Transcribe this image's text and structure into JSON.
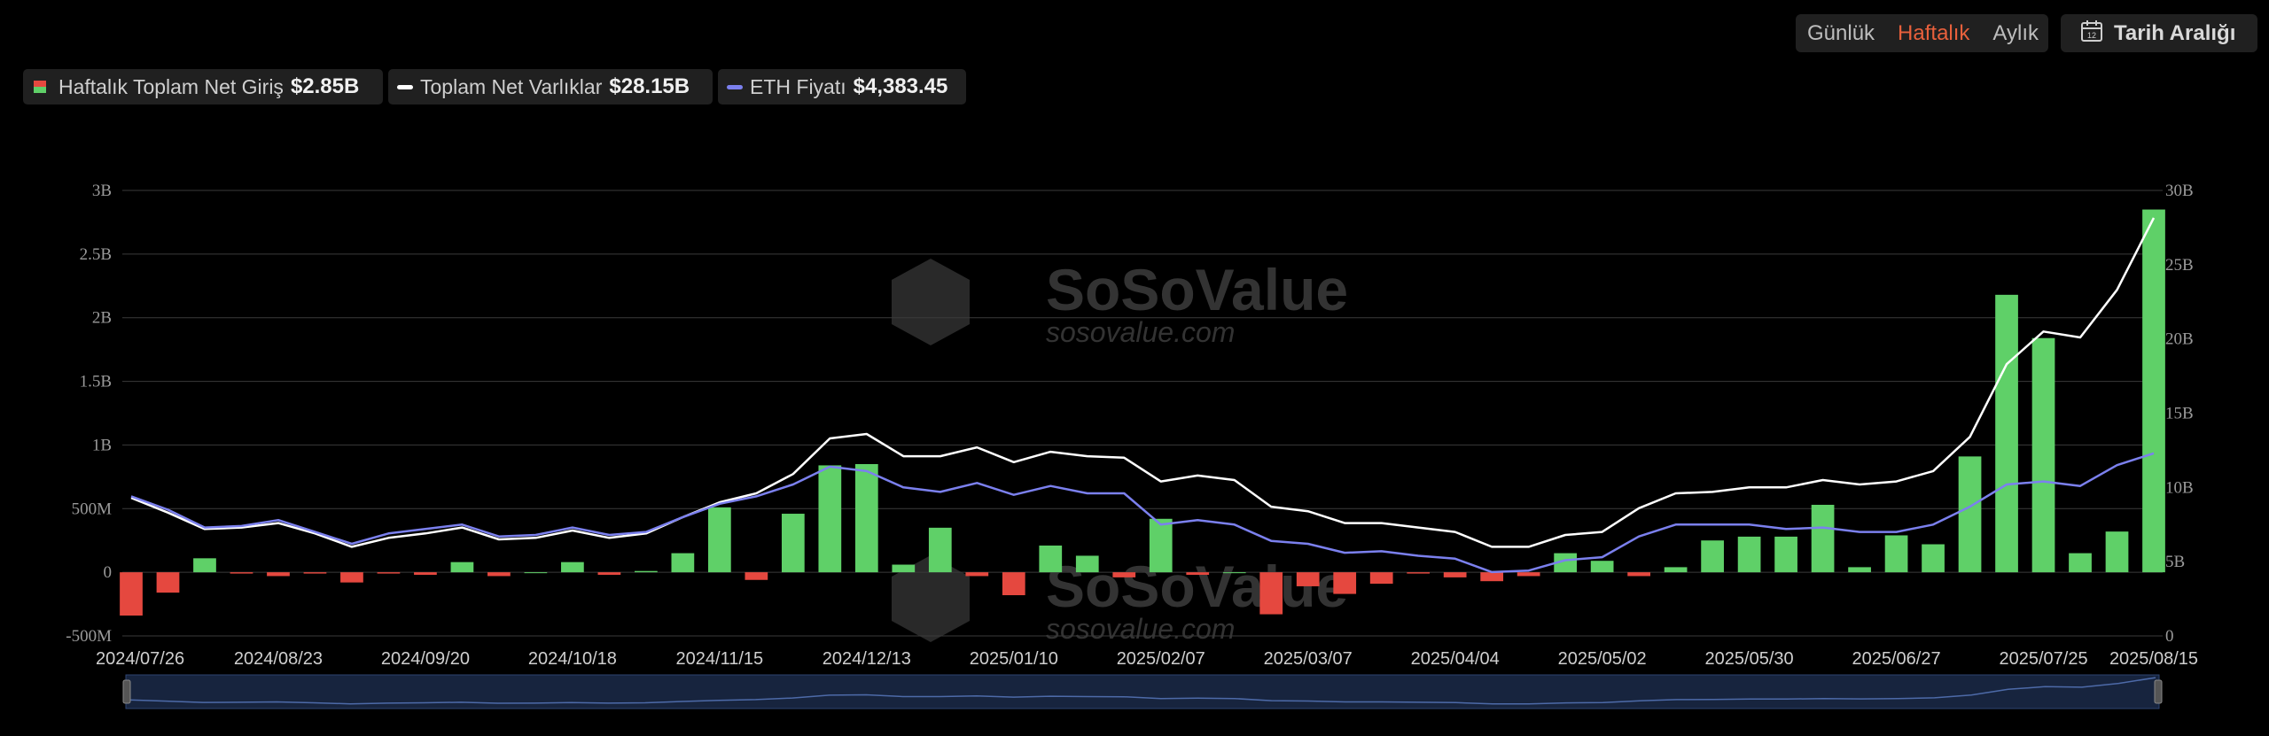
{
  "controls": {
    "toggle": [
      "Günlük",
      "Haftalık",
      "Aylık"
    ],
    "active": "Haftalık",
    "date_range_label": "Tarih Aralığı",
    "colors": {
      "active": "#e8603c"
    }
  },
  "legend": [
    {
      "name": "Haftalık Toplam Net Giriş",
      "value": "$2.85B",
      "swatch": "bar"
    },
    {
      "name": "Toplam Net Varlıklar",
      "value": "$28.15B",
      "swatch": "#ffffff"
    },
    {
      "name": "ETH Fiyatı",
      "value": "$4,383.45",
      "swatch": "#7b80ee"
    }
  ],
  "watermark": {
    "brand": "SoSoValue",
    "url": "sosovalue.com",
    "icon": "sosovalue-logo-icon"
  },
  "chart_data": {
    "type": "bar",
    "x": [
      "2024/07/26",
      "2024/08/02",
      "2024/08/09",
      "2024/08/16",
      "2024/08/23",
      "2024/08/30",
      "2024/09/06",
      "2024/09/13",
      "2024/09/20",
      "2024/09/27",
      "2024/10/04",
      "2024/10/11",
      "2024/10/18",
      "2024/10/25",
      "2024/11/01",
      "2024/11/08",
      "2024/11/15",
      "2024/11/22",
      "2024/11/29",
      "2024/12/06",
      "2024/12/13",
      "2024/12/20",
      "2024/12/27",
      "2025/01/03",
      "2025/01/10",
      "2025/01/17",
      "2025/01/24",
      "2025/01/31",
      "2025/02/07",
      "2025/02/14",
      "2025/02/21",
      "2025/02/28",
      "2025/03/07",
      "2025/03/14",
      "2025/03/21",
      "2025/03/28",
      "2025/04/04",
      "2025/04/11",
      "2025/04/18",
      "2025/04/25",
      "2025/05/02",
      "2025/05/09",
      "2025/05/16",
      "2025/05/23",
      "2025/05/30",
      "2025/06/06",
      "2025/06/13",
      "2025/06/20",
      "2025/06/27",
      "2025/07/04",
      "2025/07/11",
      "2025/07/18",
      "2025/07/25",
      "2025/08/01",
      "2025/08/08",
      "2025/08/15"
    ],
    "x_tick_labels": [
      "2024/07/26",
      "2024/08/23",
      "2024/09/20",
      "2024/10/18",
      "2024/11/15",
      "2024/12/13",
      "2025/01/10",
      "2025/02/07",
      "2025/03/07",
      "2025/04/04",
      "2025/05/02",
      "2025/05/30",
      "2025/06/27",
      "2025/07/25",
      "2025/08/15"
    ],
    "y_left": {
      "ticks": [
        "-500M",
        "0",
        "500M",
        "1B",
        "1.5B",
        "2B",
        "2.5B",
        "3B"
      ],
      "range_m": [
        -500,
        3000
      ]
    },
    "y_right": {
      "ticks": [
        "0",
        "5B",
        "10B",
        "15B",
        "20B",
        "25B",
        "30B"
      ],
      "range_b": [
        0,
        30
      ]
    },
    "series": [
      {
        "name": "Haftalık Toplam Net Giriş",
        "kind": "bar",
        "axis": "left",
        "unit": "M",
        "values": [
          -340,
          -160,
          110,
          -10,
          -30,
          -10,
          -80,
          -10,
          -20,
          80,
          -30,
          0,
          80,
          -20,
          10,
          150,
          510,
          -60,
          460,
          840,
          850,
          60,
          350,
          -30,
          -180,
          210,
          130,
          -40,
          420,
          -20,
          0,
          -330,
          -110,
          -170,
          -90,
          -10,
          -40,
          -70,
          -30,
          150,
          90,
          -30,
          40,
          250,
          280,
          280,
          530,
          40,
          290,
          220,
          910,
          2180,
          1840,
          150,
          320,
          2850
        ]
      },
      {
        "name": "Toplam Net Varlıklar",
        "kind": "line",
        "axis": "right",
        "unit": "B",
        "color": "#ffffff",
        "values": [
          9.3,
          8.3,
          7.2,
          7.3,
          7.6,
          6.9,
          6.0,
          6.6,
          6.9,
          7.3,
          6.5,
          6.6,
          7.1,
          6.6,
          6.9,
          8.0,
          9.0,
          9.6,
          10.9,
          13.3,
          13.6,
          12.1,
          12.1,
          12.7,
          11.7,
          12.4,
          12.1,
          12.0,
          10.4,
          10.8,
          10.5,
          8.7,
          8.4,
          7.6,
          7.6,
          7.3,
          7.0,
          6.0,
          6.0,
          6.8,
          7.0,
          8.6,
          9.6,
          9.7,
          10.0,
          10.0,
          10.5,
          10.2,
          10.4,
          11.1,
          13.4,
          18.3,
          20.5,
          20.1,
          23.3,
          28.15
        ]
      },
      {
        "name": "ETH Fiyatı",
        "kind": "line",
        "axis": "right",
        "unit": "B",
        "color": "#7b80ee",
        "values": [
          9.4,
          8.5,
          7.3,
          7.4,
          7.8,
          7.0,
          6.2,
          6.9,
          7.2,
          7.5,
          6.7,
          6.8,
          7.3,
          6.8,
          7.0,
          8.0,
          8.9,
          9.4,
          10.2,
          11.4,
          11.1,
          10.0,
          9.7,
          10.3,
          9.5,
          10.1,
          9.6,
          9.6,
          7.5,
          7.8,
          7.5,
          6.4,
          6.2,
          5.6,
          5.7,
          5.4,
          5.2,
          4.3,
          4.4,
          5.1,
          5.3,
          6.7,
          7.5,
          7.5,
          7.5,
          7.2,
          7.3,
          7.0,
          7.0,
          7.5,
          8.7,
          10.2,
          10.4,
          10.1,
          11.5,
          12.3
        ]
      }
    ],
    "colors": {
      "positive": "#5fd068",
      "negative": "#e5483f",
      "grid": "#3a3a3a"
    },
    "grid": true
  }
}
